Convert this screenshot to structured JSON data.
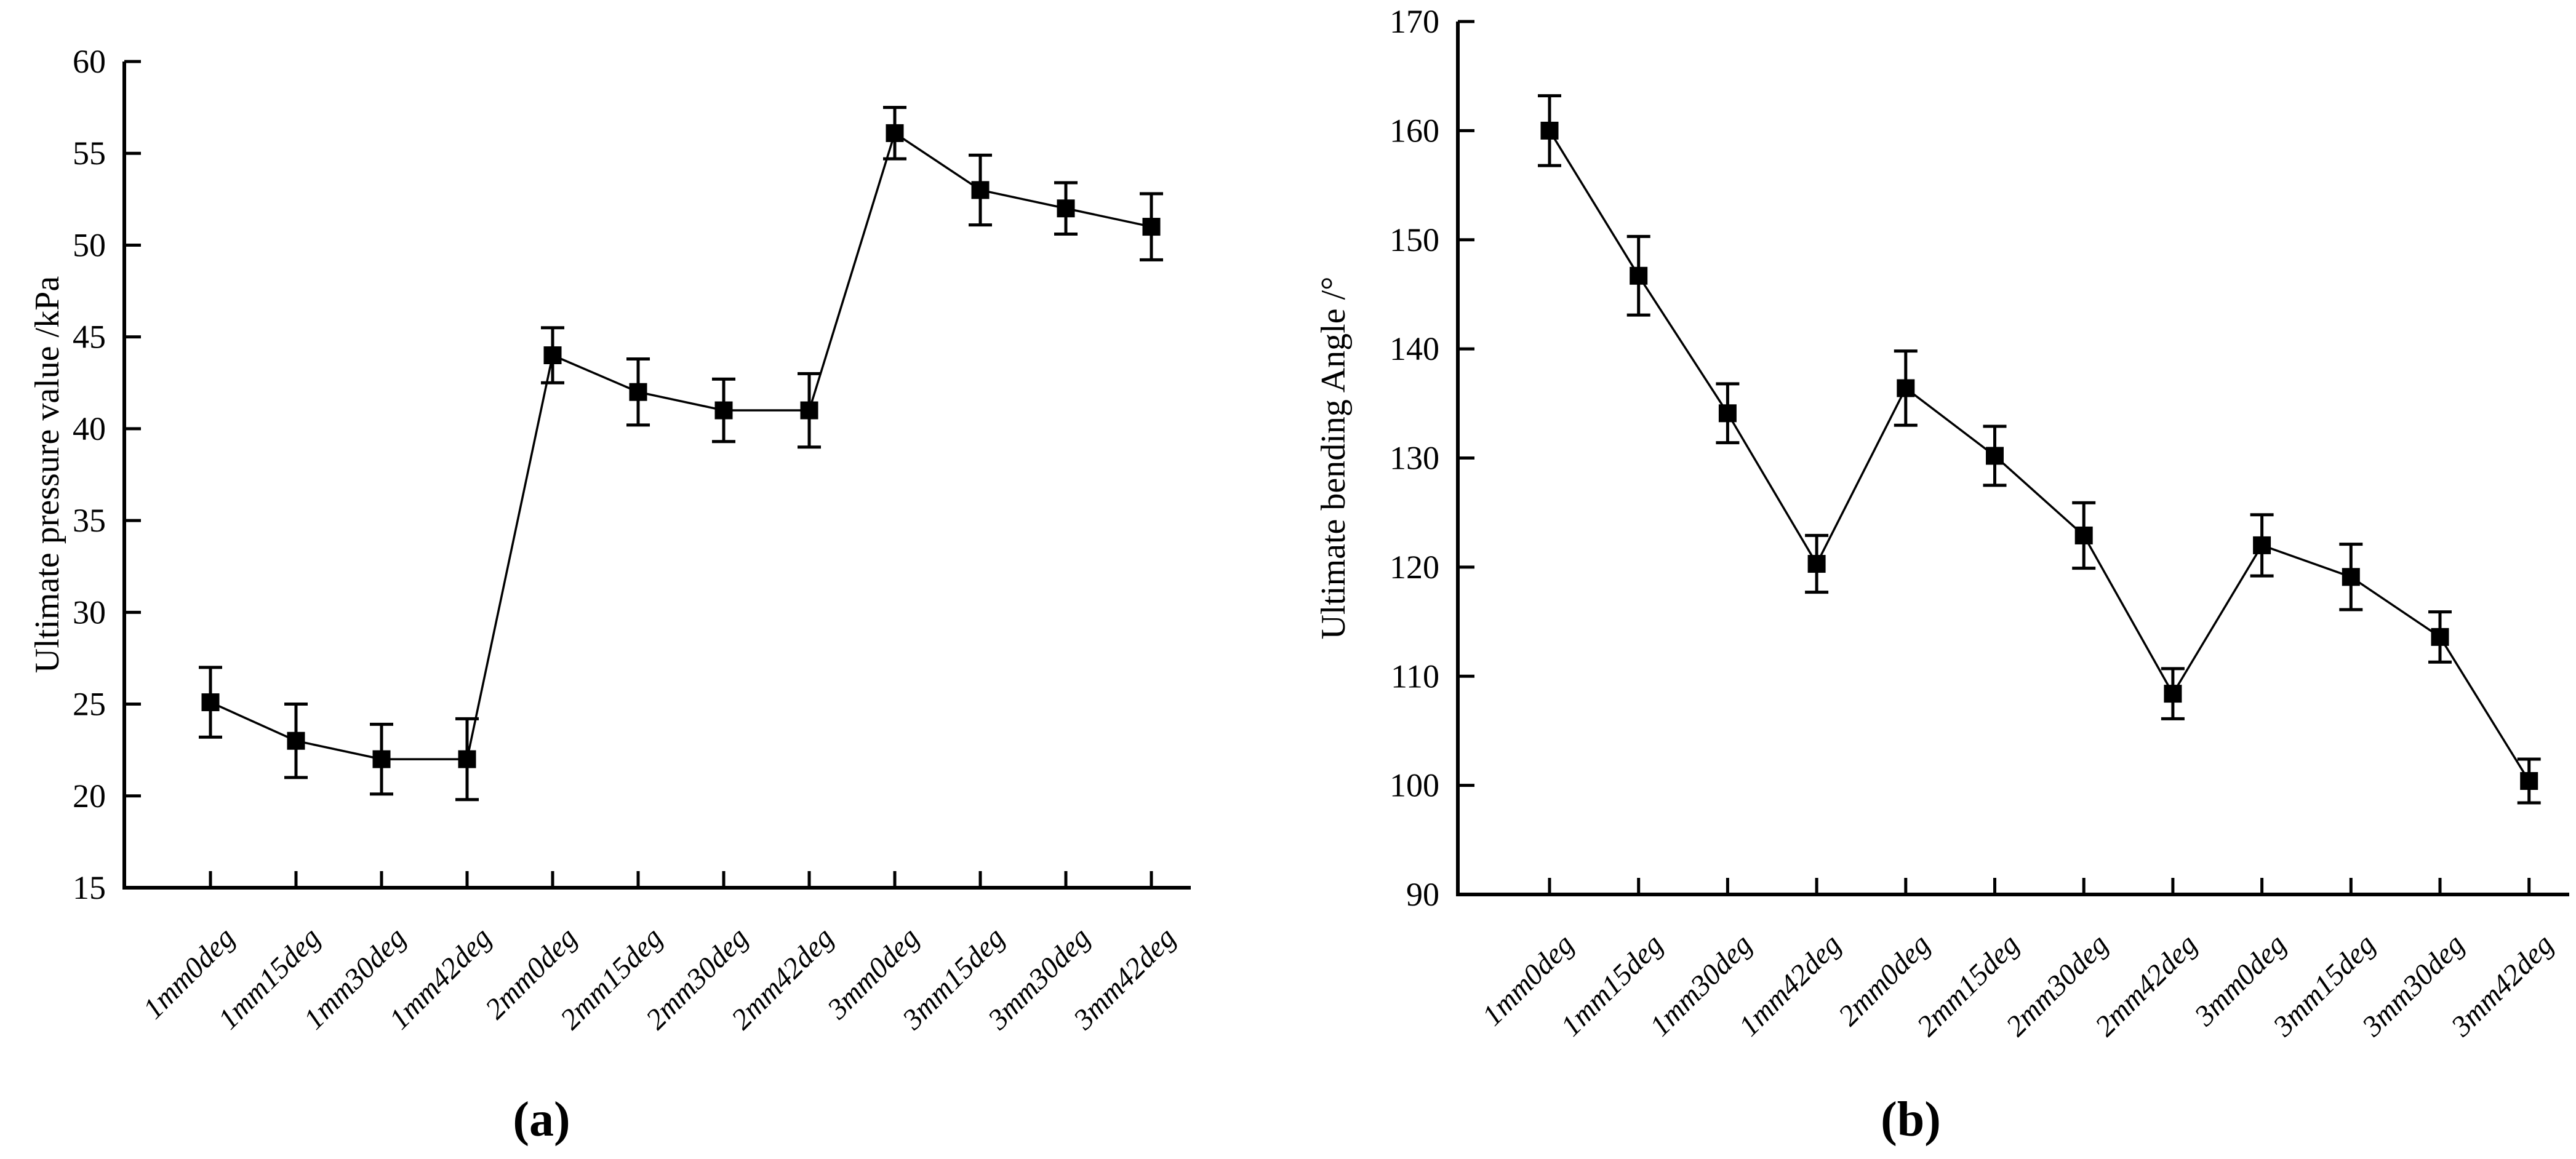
{
  "figure": {
    "background_color": "#ffffff",
    "ink_color": "#000000",
    "caption_a": "(a)",
    "caption_b": "(b)"
  },
  "chart_data": [
    {
      "type": "line",
      "panel": "a",
      "title": "",
      "xlabel": "",
      "ylabel": "Ultimate pressure value /kPa",
      "ylim": [
        15,
        60
      ],
      "ytick_step": 5,
      "yticks": [
        15,
        20,
        25,
        30,
        35,
        40,
        45,
        50,
        55,
        60
      ],
      "grid": false,
      "legend_position": "none",
      "marker": "filled-square",
      "error_bars": true,
      "categories": [
        "1mm0deg",
        "1mm15deg",
        "1mm30deg",
        "1mm42deg",
        "2mm0deg",
        "2mm15deg",
        "2mm30deg",
        "2mm42deg",
        "3mm0deg",
        "3mm15deg",
        "3mm30deg",
        "3mm42deg"
      ],
      "series": [
        {
          "name": "Ultimate pressure value",
          "values": [
            25.1,
            23.0,
            22.0,
            22.0,
            44.0,
            42.0,
            41.0,
            41.0,
            56.1,
            53.0,
            52.0,
            51.0
          ],
          "errors": [
            1.9,
            2.0,
            1.9,
            2.2,
            1.5,
            1.8,
            1.7,
            2.0,
            1.4,
            1.9,
            1.4,
            1.8
          ]
        }
      ]
    },
    {
      "type": "line",
      "panel": "b",
      "title": "",
      "xlabel": "",
      "ylabel": "Ultimate bending Angle /°",
      "ylim": [
        90,
        170
      ],
      "ytick_step": 10,
      "yticks": [
        90,
        100,
        110,
        120,
        130,
        140,
        150,
        160,
        170
      ],
      "grid": false,
      "legend_position": "none",
      "marker": "filled-square",
      "error_bars": true,
      "categories": [
        "1mm0deg",
        "1mm15deg",
        "1mm30deg",
        "1mm42deg",
        "2mm0deg",
        "2mm15deg",
        "2mm30deg",
        "2mm42deg",
        "3mm0deg",
        "3mm15deg",
        "3mm30deg",
        "3mm42deg"
      ],
      "series": [
        {
          "name": "Ultimate bending Angle",
          "values": [
            160.0,
            146.7,
            134.1,
            120.3,
            136.4,
            130.2,
            122.9,
            108.4,
            122.0,
            119.1,
            113.6,
            100.4
          ],
          "errors": [
            3.2,
            3.6,
            2.7,
            2.6,
            3.4,
            2.7,
            3.0,
            2.3,
            2.8,
            3.0,
            2.3,
            2.0
          ]
        }
      ]
    }
  ]
}
